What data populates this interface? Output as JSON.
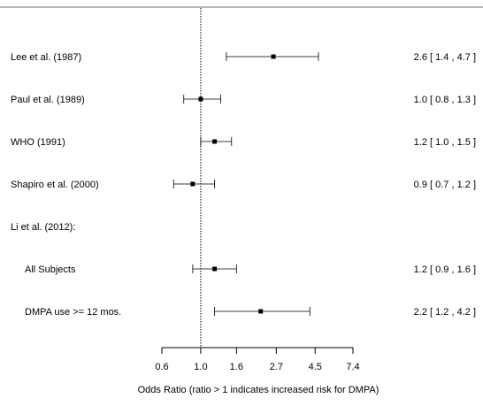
{
  "chart_data": {
    "type": "forest",
    "scale": "log",
    "reference_line": 1.0,
    "xlabel": "Odds Ratio (ratio > 1 indicates increased risk for DMPA)",
    "x_ticks": [
      "0.6",
      "1.0",
      "1.6",
      "2.7",
      "4.5",
      "7.4"
    ],
    "xlim": [
      0.6,
      7.4
    ],
    "rows": [
      {
        "label": "Lee et al. (1987)",
        "estimate": 2.6,
        "lower": 1.4,
        "upper": 4.7,
        "ci_text": "2.6 [ 1.4 , 4.7 ]"
      },
      {
        "label": "Paul et al. (1989)",
        "estimate": 1.0,
        "lower": 0.8,
        "upper": 1.3,
        "ci_text": "1.0 [ 0.8 , 1.3 ]"
      },
      {
        "label": "WHO (1991)",
        "estimate": 1.2,
        "lower": 1.0,
        "upper": 1.5,
        "ci_text": "1.2 [ 1.0 , 1.5 ]"
      },
      {
        "label": "Shapiro et al. (2000)",
        "estimate": 0.9,
        "lower": 0.7,
        "upper": 1.2,
        "ci_text": "0.9 [ 0.7 , 1.2 ]"
      },
      {
        "label": "Li et al. (2012):",
        "header": true
      },
      {
        "label": "All Subjects",
        "indent": true,
        "estimate": 1.2,
        "lower": 0.9,
        "upper": 1.6,
        "ci_text": "1.2 [ 0.9 , 1.6 ]"
      },
      {
        "label": "DMPA use >= 12 mos.",
        "indent": true,
        "estimate": 2.2,
        "lower": 1.2,
        "upper": 4.2,
        "ci_text": "2.2 [ 1.2 , 4.2 ]"
      }
    ]
  }
}
